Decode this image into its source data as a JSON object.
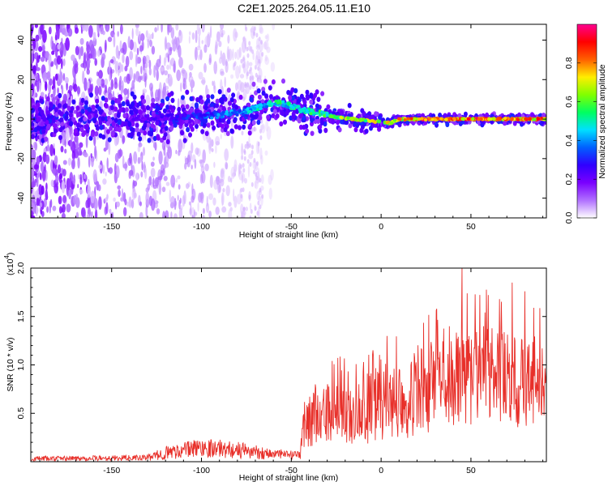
{
  "title": "C2E1.2025.264.05.11.E10",
  "chart_data": [
    {
      "type": "heatmap",
      "title": "C2E1.2025.264.05.11.E10",
      "xlabel": "Height of straight line (km)",
      "ylabel": "Frequency (Hz)",
      "xlim": [
        -195,
        92
      ],
      "ylim": [
        -50,
        48
      ],
      "xticks": [
        -150,
        -100,
        -50,
        0,
        50
      ],
      "xtick_labels": [
        "-150",
        "-100",
        "-50",
        "0",
        "50"
      ],
      "yticks": [
        -40,
        -20,
        0,
        20,
        40
      ],
      "ytick_labels": [
        "-40",
        "-20",
        "0",
        "20",
        "40"
      ],
      "colorbar": {
        "label": "Normalized spectral amplitude",
        "range": [
          0,
          1
        ],
        "ticks": [
          0.0,
          0.2,
          0.4,
          0.6,
          0.8
        ],
        "tick_labels": [
          "0.0",
          "0.2",
          "0.4",
          "0.6",
          "0.8"
        ],
        "colors": [
          "#ffffff",
          "#b070ff",
          "#7a00ff",
          "#3000ff",
          "#0060ff",
          "#00e0ff",
          "#00ff60",
          "#80ff00",
          "#ffee00",
          "#ff6000",
          "#ff0000",
          "#ff0090"
        ]
      },
      "ridge": {
        "x": [
          -195,
          -150,
          -120,
          -90,
          -75,
          -62,
          -55,
          -45,
          -35,
          -25,
          -15,
          -5,
          5,
          10,
          20,
          40,
          60,
          92
        ],
        "freq": [
          0,
          0,
          1,
          2,
          4,
          8,
          8,
          5,
          3,
          1,
          0,
          -1,
          -2,
          0,
          0,
          0,
          0,
          0
        ],
        "amplitude": [
          0.15,
          0.18,
          0.25,
          0.4,
          0.45,
          0.5,
          0.55,
          0.5,
          0.55,
          0.65,
          0.75,
          0.7,
          0.72,
          0.8,
          0.9,
          0.9,
          0.9,
          0.85
        ]
      }
    },
    {
      "type": "line",
      "xlabel": "Height of straight line (km)",
      "ylabel": "SNR (10 * v/v)",
      "multiplier_label": "(x10",
      "multiplier_exp": "4",
      "multiplier_close": ")",
      "color": "#e8302a",
      "xlim": [
        -195,
        92
      ],
      "ylim": [
        0,
        20000
      ],
      "xticks": [
        -150,
        -100,
        -50,
        0,
        50
      ],
      "xtick_labels": [
        "-150",
        "-100",
        "-50",
        "0",
        "50"
      ],
      "yticks": [
        5000,
        10000,
        15000,
        20000
      ],
      "ytick_labels": [
        "0.5",
        "1.0",
        "1.5",
        "2.0"
      ],
      "envelope": {
        "x": [
          -195,
          -130,
          -120,
          -100,
          -80,
          -60,
          -45,
          -43,
          -40,
          -20,
          0,
          20,
          40,
          60,
          80,
          92
        ],
        "mean": [
          300,
          400,
          900,
          1500,
          1200,
          800,
          600,
          4000,
          4500,
          5000,
          6000,
          7000,
          8500,
          9000,
          8000,
          9000
        ],
        "spread": [
          250,
          300,
          700,
          1000,
          900,
          600,
          400,
          2500,
          3000,
          3500,
          4000,
          4500,
          5000,
          5000,
          5000,
          4000
        ]
      },
      "peaks": [
        {
          "x": 45,
          "y": 20000
        },
        {
          "x": 73,
          "y": 18500
        },
        {
          "x": 80,
          "y": 17600
        },
        {
          "x": 48,
          "y": 17400
        },
        {
          "x": 66,
          "y": 16800
        },
        {
          "x": 38,
          "y": 14000
        },
        {
          "x": 57,
          "y": 14000
        }
      ]
    }
  ]
}
